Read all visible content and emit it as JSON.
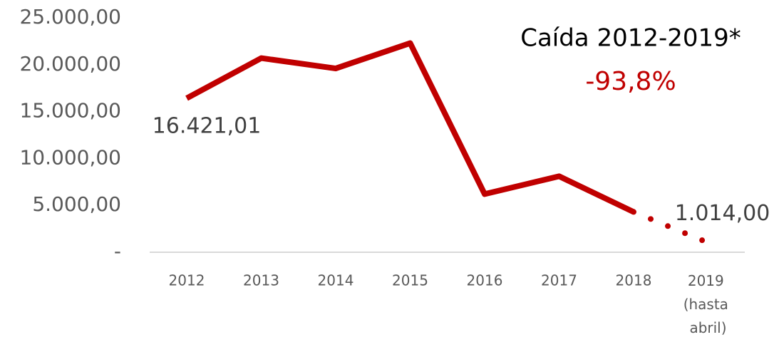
{
  "chart_data": {
    "type": "line",
    "annotations": [
      "Caída 2012-2019*",
      "-93,8%"
    ],
    "categories": [
      "2012",
      "2013",
      "2014",
      "2015",
      "2016",
      "2017",
      "2018",
      "2019 (hasta abril)"
    ],
    "series": [
      {
        "color": "#c00000",
        "values": [
          16421.01,
          20700,
          19600,
          22300,
          6200,
          8100,
          4300,
          1014
        ],
        "value_labels": [
          "16.421,01",
          null,
          null,
          null,
          null,
          null,
          null,
          "1.014,00"
        ]
      }
    ],
    "dotted_last_segment": true,
    "ylim": [
      0,
      25000
    ],
    "yticks": [
      {
        "value": 0,
        "label": "-"
      },
      {
        "value": 5000,
        "label": "5.000,00"
      },
      {
        "value": 10000,
        "label": "10.000,00"
      },
      {
        "value": 15000,
        "label": "15.000,00"
      },
      {
        "value": 20000,
        "label": "20.000,00"
      },
      {
        "value": 25000,
        "label": "25.000,00"
      }
    ],
    "annotation_colors": [
      "#000000",
      "#c00000"
    ]
  }
}
